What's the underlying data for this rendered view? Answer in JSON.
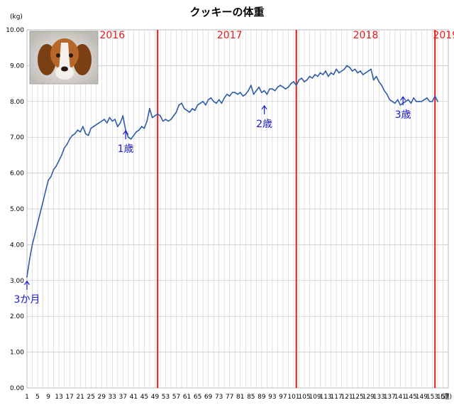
{
  "chart_data": {
    "type": "line",
    "title": "クッキーの体重",
    "ylabel": "(kg)",
    "xlabel": "(週)",
    "ylim": [
      0,
      10
    ],
    "xlim": [
      1,
      159
    ],
    "grid": true,
    "y_ticks": [
      "0.00",
      "1.00",
      "2.00",
      "3.00",
      "4.00",
      "5.00",
      "6.00",
      "7.00",
      "8.00",
      "9.00",
      "10.00"
    ],
    "x_ticks": [
      1,
      5,
      9,
      13,
      17,
      21,
      25,
      29,
      33,
      37,
      41,
      45,
      49,
      53,
      57,
      61,
      65,
      69,
      73,
      77,
      81,
      85,
      89,
      93,
      97,
      101,
      105,
      109,
      113,
      117,
      121,
      125,
      129,
      133,
      137,
      141,
      145,
      149,
      153,
      157
    ],
    "line_color": "#2f5da8",
    "year_line_color": "#e31b1b",
    "annotation_color": "#1a1ad6",
    "year_lines": [
      {
        "label": "2016",
        "x": 50
      },
      {
        "label": "2017",
        "x": 102
      },
      {
        "label": "2018",
        "x": 154
      },
      {
        "label": "2019",
        "x": 154
      }
    ],
    "year_labels": [
      {
        "label": "2016",
        "x": 33
      },
      {
        "label": "2017",
        "x": 77
      },
      {
        "label": "2018",
        "x": 128
      },
      {
        "label": "2019",
        "x": 158
      }
    ],
    "annotations": [
      {
        "label": "3か月",
        "x": 1,
        "y": 3.1
      },
      {
        "label": "1歳",
        "x": 38,
        "y": 7.3
      },
      {
        "label": "2歳",
        "x": 90,
        "y": 8.0
      },
      {
        "label": "3歳",
        "x": 142,
        "y": 8.25
      }
    ],
    "series": [
      {
        "x": [
          1,
          2,
          3,
          4,
          5,
          6,
          7,
          8,
          9,
          10,
          11,
          12,
          13,
          14,
          15,
          16,
          17,
          18,
          19,
          20,
          21,
          22,
          23,
          24,
          25,
          26,
          27,
          28,
          29,
          30,
          31,
          32,
          33,
          34,
          35,
          36,
          37,
          38,
          39,
          40,
          41,
          42,
          43,
          44,
          45,
          46,
          47,
          48,
          49,
          50,
          51,
          52,
          53,
          54,
          55,
          56,
          57,
          58,
          59,
          60,
          61,
          62,
          63,
          64,
          65,
          66,
          67,
          68,
          69,
          70,
          71,
          72,
          73,
          74,
          75,
          76,
          77,
          78,
          79,
          80,
          81,
          82,
          83,
          84,
          85,
          86,
          87,
          88,
          89,
          90,
          91,
          92,
          93,
          94,
          95,
          96,
          97,
          98,
          99,
          100,
          101,
          102,
          103,
          104,
          105,
          106,
          107,
          108,
          109,
          110,
          111,
          112,
          113,
          114,
          115,
          116,
          117,
          118,
          119,
          120,
          121,
          122,
          123,
          124,
          125,
          126,
          127,
          128,
          129,
          130,
          131,
          132,
          133,
          134,
          135,
          136,
          137,
          138,
          139,
          140,
          141,
          142,
          143,
          144,
          145,
          146,
          147,
          148,
          149,
          150,
          151,
          152,
          153,
          154,
          155
        ],
        "values": [
          3.1,
          3.6,
          4.0,
          4.3,
          4.6,
          4.9,
          5.2,
          5.5,
          5.8,
          5.9,
          6.1,
          6.2,
          6.35,
          6.5,
          6.7,
          6.8,
          6.95,
          7.05,
          7.1,
          7.2,
          7.15,
          7.3,
          7.1,
          7.05,
          7.25,
          7.3,
          7.35,
          7.4,
          7.45,
          7.5,
          7.4,
          7.55,
          7.45,
          7.5,
          7.3,
          7.4,
          7.6,
          7.2,
          7.0,
          6.95,
          7.05,
          7.15,
          7.2,
          7.3,
          7.25,
          7.45,
          7.8,
          7.55,
          7.6,
          7.65,
          7.6,
          7.45,
          7.5,
          7.45,
          7.5,
          7.6,
          7.7,
          7.9,
          7.95,
          7.8,
          7.75,
          7.7,
          7.8,
          7.75,
          7.9,
          7.95,
          8.0,
          7.9,
          8.05,
          8.1,
          8.0,
          7.95,
          8.05,
          7.95,
          8.1,
          8.2,
          8.15,
          8.25,
          8.25,
          8.2,
          8.25,
          8.15,
          8.2,
          8.3,
          8.45,
          8.2,
          8.3,
          8.4,
          8.25,
          8.3,
          8.2,
          8.35,
          8.35,
          8.3,
          8.4,
          8.45,
          8.4,
          8.35,
          8.4,
          8.5,
          8.55,
          8.45,
          8.6,
          8.65,
          8.55,
          8.6,
          8.7,
          8.65,
          8.75,
          8.7,
          8.8,
          8.75,
          8.85,
          8.7,
          8.8,
          8.75,
          8.9,
          8.8,
          8.85,
          8.9,
          9.0,
          8.95,
          8.85,
          8.9,
          8.8,
          8.85,
          8.75,
          8.8,
          8.85,
          8.9,
          8.6,
          8.7,
          8.55,
          8.45,
          8.3,
          8.2,
          8.05,
          8.0,
          7.95,
          8.05,
          7.9,
          7.95,
          8.0,
          8.05,
          7.95,
          8.1,
          8.0,
          8.0,
          8.0,
          8.05,
          8.1,
          8.0,
          8.0,
          8.15,
          8.0
        ],
        "values_note_exclude": []
      }
    ]
  }
}
